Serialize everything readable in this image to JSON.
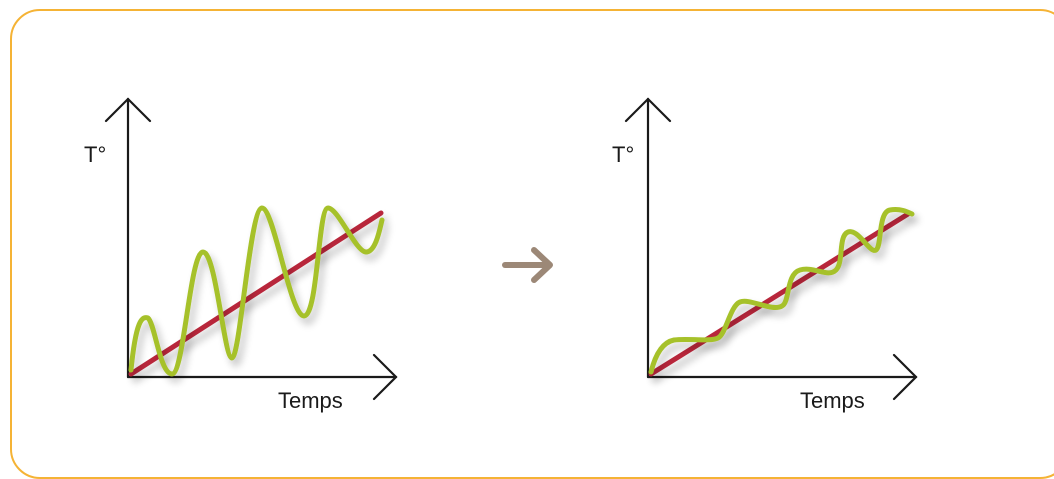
{
  "colors": {
    "frame": "#f5b335",
    "axis": "#1a1a1a",
    "trend": "#b8263a",
    "oscillation": "#a6c12a",
    "arrow": "#9c8877"
  },
  "left_panel": {
    "y_label": "T°",
    "x_label": "Temps"
  },
  "right_panel": {
    "y_label": "T°",
    "x_label": "Temps"
  },
  "middle": {
    "icon": "right-arrow-icon"
  }
}
